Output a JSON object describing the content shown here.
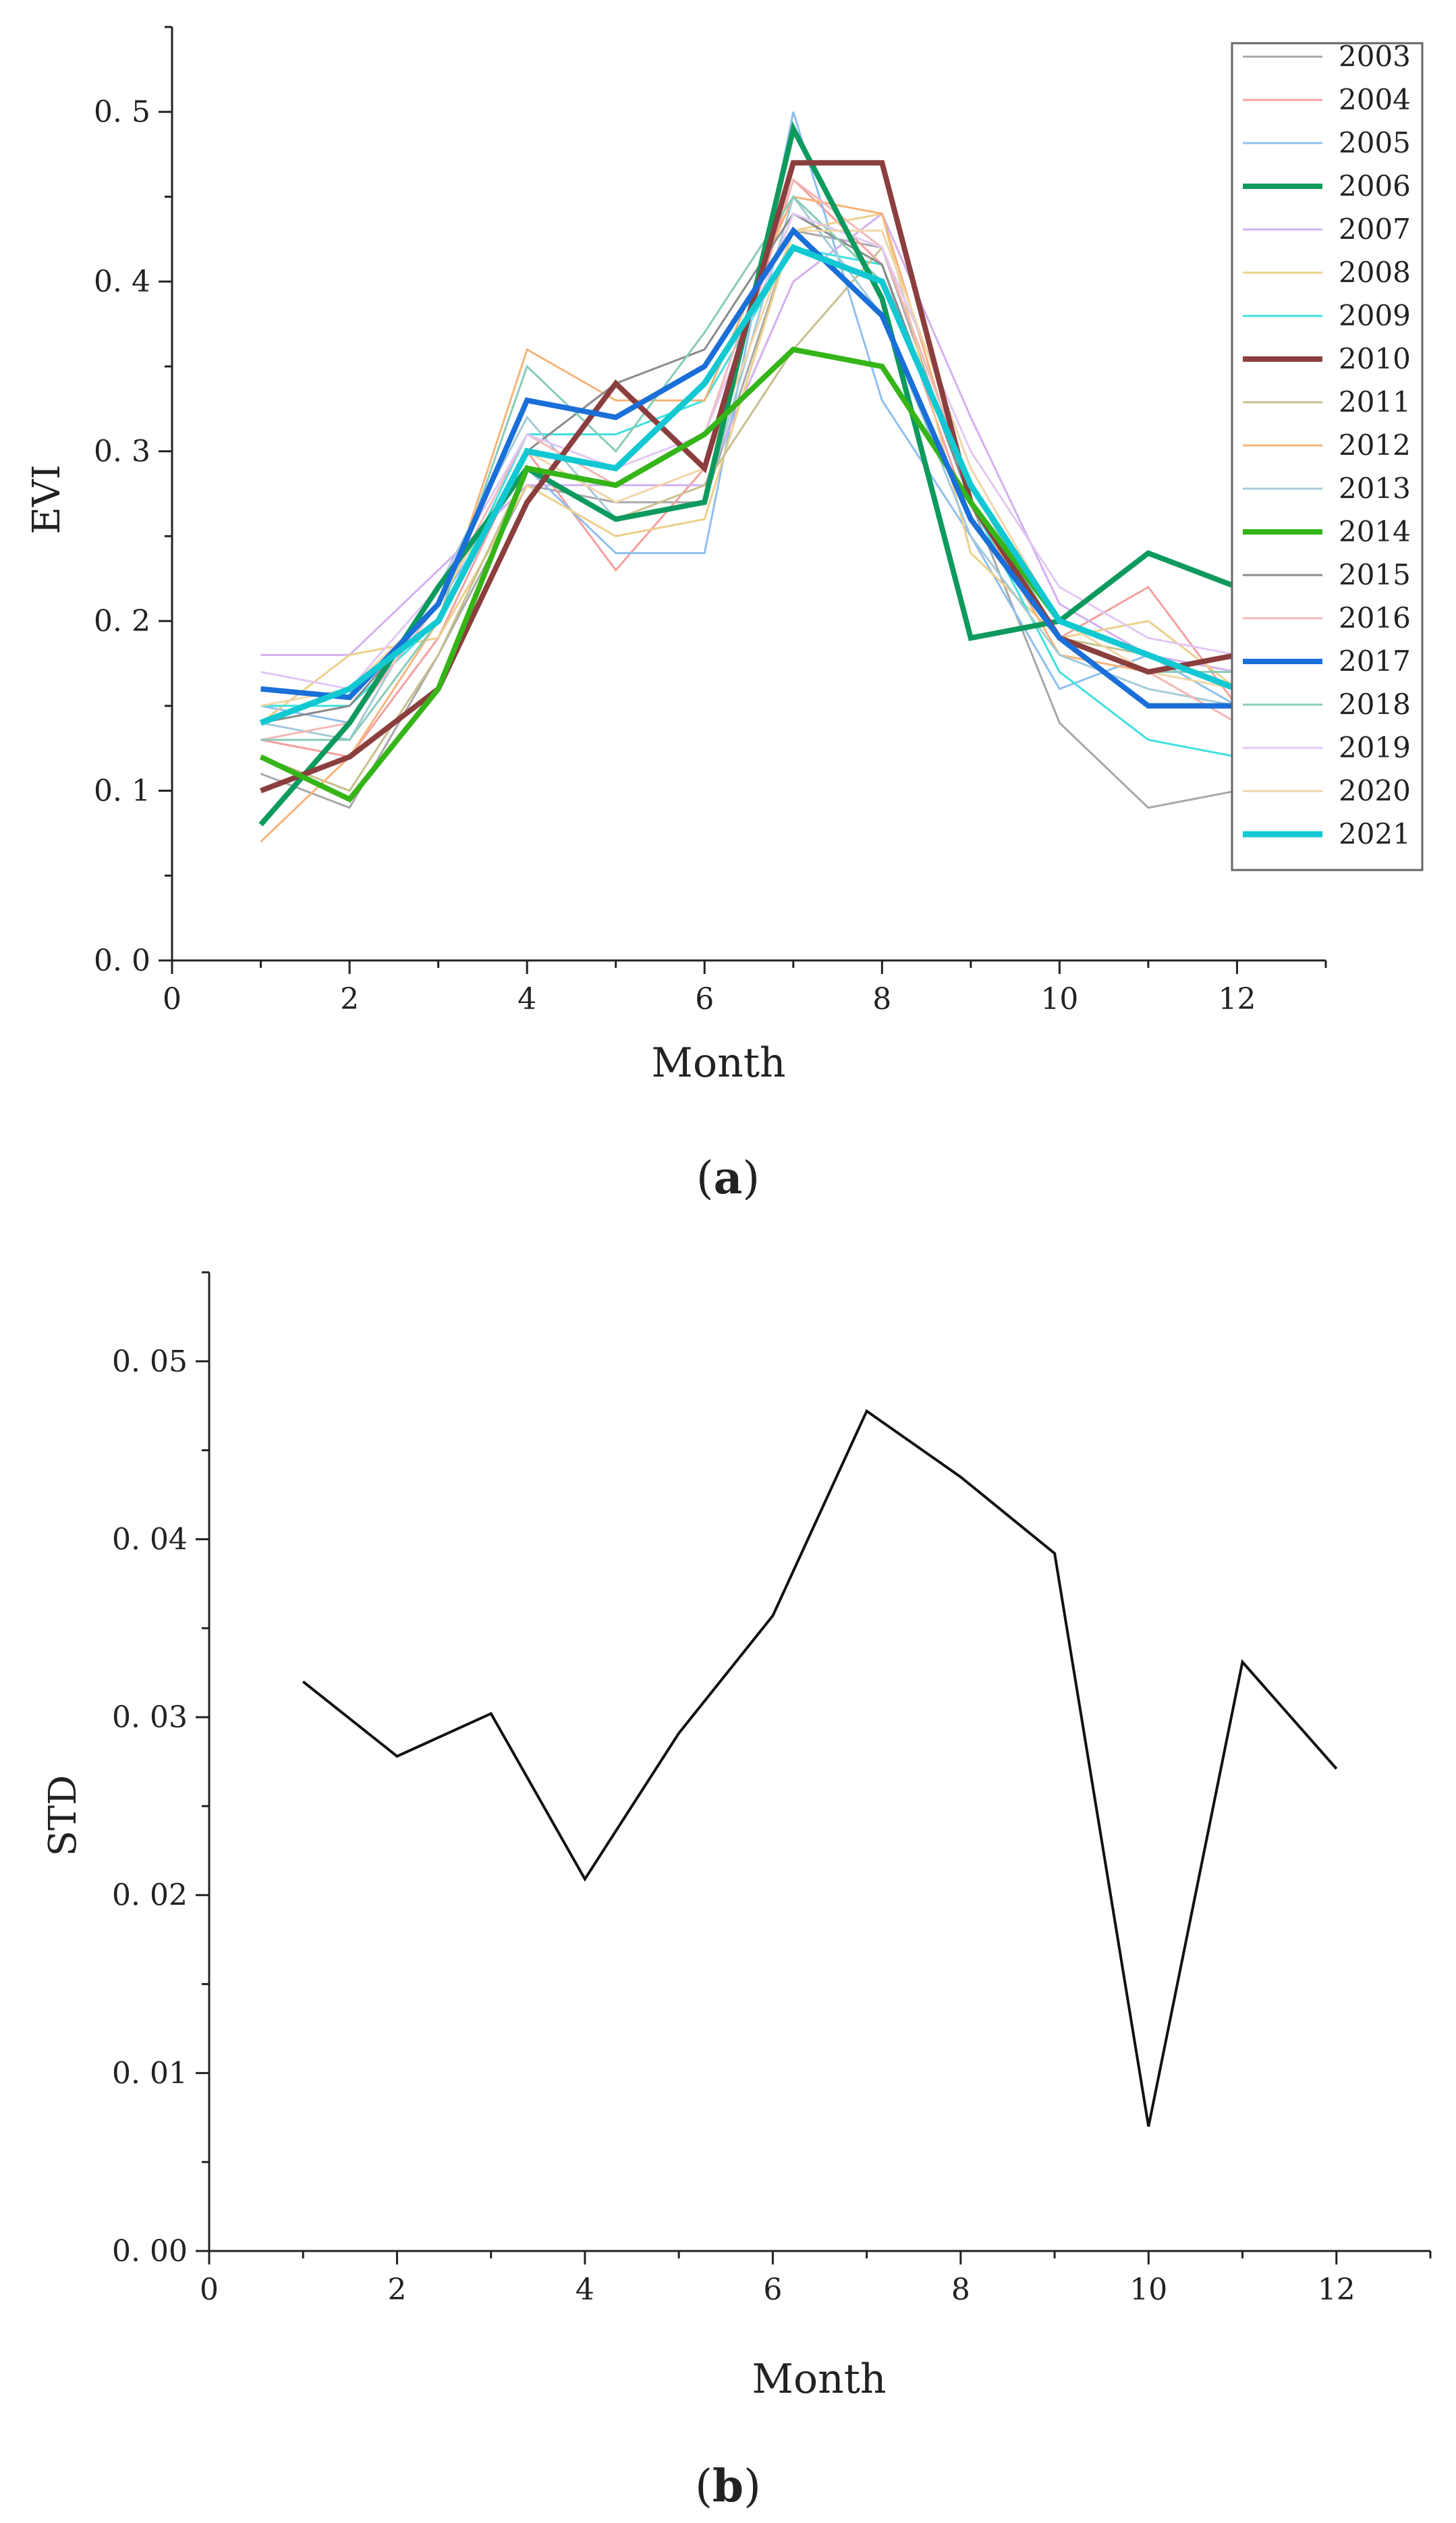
{
  "chart_data": [
    {
      "type": "line",
      "panel_label": "a",
      "xlabel": "Month",
      "ylabel": "EVI",
      "xlim": [
        0,
        13
      ],
      "ylim": [
        0,
        0.55
      ],
      "xticks": [
        0,
        2,
        4,
        6,
        8,
        10,
        12
      ],
      "xtick_labels": [
        "0",
        "2",
        "4",
        "6",
        "8",
        "10",
        "12"
      ],
      "yticks": [
        0,
        0.1,
        0.2,
        0.3,
        0.4,
        0.5
      ],
      "ytick_labels": [
        "0. 0",
        "0. 1",
        "0. 2",
        "0. 3",
        "0. 4",
        "0. 5"
      ],
      "grid": false,
      "legend_position": "top-right",
      "x": [
        1,
        2,
        3,
        4,
        5,
        6,
        7,
        8,
        9,
        10,
        11,
        12
      ],
      "series": [
        {
          "name": "2003",
          "color": "#a8a8a8",
          "width": 3,
          "values": [
            0.11,
            0.09,
            0.18,
            0.28,
            0.27,
            0.27,
            0.43,
            0.42,
            0.27,
            0.14,
            0.09,
            0.1
          ]
        },
        {
          "name": "2004",
          "color": "#f4a0a0",
          "width": 3,
          "values": [
            0.13,
            0.12,
            0.19,
            0.3,
            0.23,
            0.29,
            0.46,
            0.41,
            0.26,
            0.19,
            0.22,
            0.15
          ]
        },
        {
          "name": "2005",
          "color": "#8ec0ee",
          "width": 3,
          "values": [
            0.15,
            0.14,
            0.21,
            0.29,
            0.24,
            0.24,
            0.5,
            0.33,
            0.25,
            0.16,
            0.18,
            0.15
          ]
        },
        {
          "name": "2006",
          "color": "#0e9a5e",
          "width": 8,
          "values": [
            0.08,
            0.14,
            0.22,
            0.29,
            0.26,
            0.27,
            0.49,
            0.39,
            0.19,
            0.2,
            0.24,
            0.22
          ]
        },
        {
          "name": "2007",
          "color": "#d3b0f0",
          "width": 3,
          "values": [
            0.18,
            0.18,
            0.23,
            0.28,
            0.28,
            0.28,
            0.4,
            0.44,
            0.32,
            0.21,
            0.18,
            0.17
          ]
        },
        {
          "name": "2008",
          "color": "#ecd08c",
          "width": 3,
          "values": [
            0.14,
            0.18,
            0.19,
            0.28,
            0.25,
            0.26,
            0.43,
            0.44,
            0.24,
            0.19,
            0.2,
            0.16
          ]
        },
        {
          "name": "2009",
          "color": "#40e0e0",
          "width": 3,
          "values": [
            0.15,
            0.15,
            0.2,
            0.31,
            0.31,
            0.33,
            0.42,
            0.41,
            0.27,
            0.17,
            0.13,
            0.12
          ]
        },
        {
          "name": "2010",
          "color": "#8b3e3e",
          "width": 8,
          "values": [
            0.1,
            0.12,
            0.16,
            0.27,
            0.34,
            0.29,
            0.47,
            0.47,
            0.27,
            0.19,
            0.17,
            0.18
          ]
        },
        {
          "name": "2011",
          "color": "#c7c08e",
          "width": 3,
          "values": [
            0.12,
            0.1,
            0.18,
            0.29,
            0.26,
            0.28,
            0.36,
            0.42,
            0.28,
            0.19,
            0.18,
            0.16
          ]
        },
        {
          "name": "2012",
          "color": "#f7b47a",
          "width": 3,
          "values": [
            0.07,
            0.12,
            0.2,
            0.36,
            0.33,
            0.33,
            0.45,
            0.44,
            0.27,
            0.18,
            0.17,
            0.14
          ]
        },
        {
          "name": "2013",
          "color": "#a4cad8",
          "width": 3,
          "values": [
            0.14,
            0.13,
            0.22,
            0.32,
            0.26,
            0.27,
            0.45,
            0.38,
            0.25,
            0.18,
            0.16,
            0.15
          ]
        },
        {
          "name": "2014",
          "color": "#35b518",
          "width": 8,
          "values": [
            0.12,
            0.095,
            0.16,
            0.29,
            0.28,
            0.31,
            0.36,
            0.35,
            0.27,
            0.2,
            0.18,
            0.16
          ]
        },
        {
          "name": "2015",
          "color": "#8a8a8a",
          "width": 3,
          "values": [
            0.14,
            0.15,
            0.21,
            0.3,
            0.34,
            0.36,
            0.44,
            0.41,
            0.27,
            0.19,
            0.15,
            0.15
          ]
        },
        {
          "name": "2016",
          "color": "#f3b8b8",
          "width": 3,
          "values": [
            0.13,
            0.14,
            0.21,
            0.31,
            0.28,
            0.31,
            0.46,
            0.42,
            0.28,
            0.19,
            0.17,
            0.14
          ]
        },
        {
          "name": "2017",
          "color": "#1a6fd8",
          "width": 8,
          "values": [
            0.16,
            0.155,
            0.21,
            0.33,
            0.32,
            0.35,
            0.43,
            0.38,
            0.26,
            0.19,
            0.15,
            0.15
          ]
        },
        {
          "name": "2018",
          "color": "#88ccb8",
          "width": 3,
          "values": [
            0.13,
            0.13,
            0.2,
            0.35,
            0.3,
            0.37,
            0.45,
            0.4,
            0.28,
            0.19,
            0.17,
            0.17
          ]
        },
        {
          "name": "2019",
          "color": "#e2c8f4",
          "width": 3,
          "values": [
            0.17,
            0.16,
            0.22,
            0.31,
            0.29,
            0.31,
            0.44,
            0.42,
            0.3,
            0.22,
            0.19,
            0.18
          ]
        },
        {
          "name": "2020",
          "color": "#f2d6a8",
          "width": 3,
          "values": [
            0.15,
            0.16,
            0.21,
            0.3,
            0.27,
            0.29,
            0.43,
            0.43,
            0.29,
            0.2,
            0.17,
            0.16
          ]
        },
        {
          "name": "2021",
          "color": "#12c8d2",
          "width": 9,
          "values": [
            0.14,
            0.16,
            0.2,
            0.3,
            0.29,
            0.34,
            0.42,
            0.4,
            0.28,
            0.2,
            0.18,
            0.16
          ]
        }
      ]
    },
    {
      "type": "line",
      "panel_label": "b",
      "xlabel": "Month",
      "ylabel": "STD",
      "xlim": [
        0,
        13
      ],
      "ylim": [
        0,
        0.055
      ],
      "xticks": [
        0,
        2,
        4,
        6,
        8,
        10,
        12
      ],
      "xtick_labels": [
        "0",
        "2",
        "4",
        "6",
        "8",
        "10",
        "12"
      ],
      "yticks": [
        0,
        0.01,
        0.02,
        0.03,
        0.04,
        0.05
      ],
      "ytick_labels": [
        "0. 00",
        "0. 01",
        "0. 02",
        "0. 03",
        "0. 04",
        "0. 05"
      ],
      "grid": false,
      "x": [
        1,
        2,
        3,
        4,
        5,
        6,
        7,
        8,
        9,
        10,
        11,
        12
      ],
      "series": [
        {
          "color": "#111111",
          "width": 4,
          "values": [
            0.032,
            0.0278,
            0.0302,
            0.0209,
            0.0291,
            0.0357,
            0.0472,
            0.0435,
            0.0392,
            0.007,
            0.0331,
            0.0271
          ]
        }
      ]
    }
  ]
}
